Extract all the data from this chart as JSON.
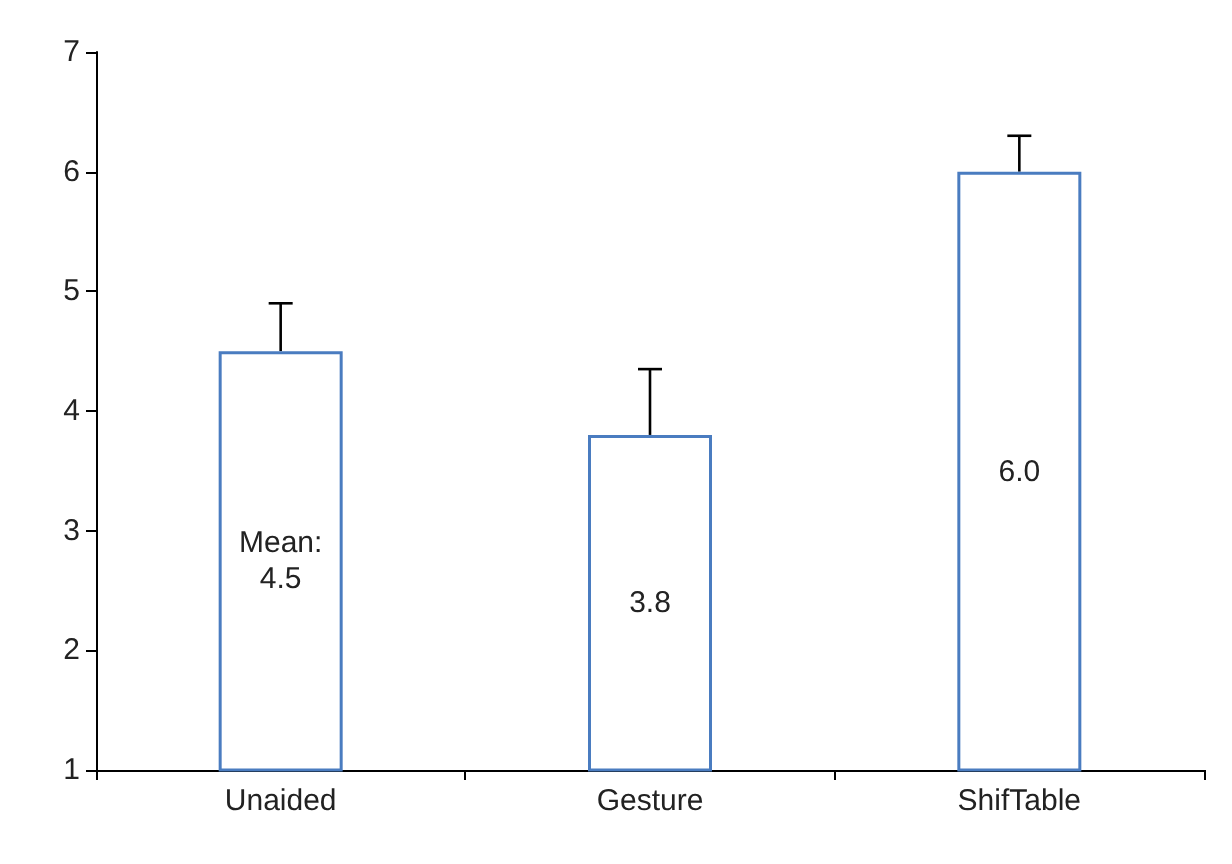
{
  "chart_data": {
    "type": "bar",
    "categories": [
      "Unaided",
      "Gesture",
      "ShifTable"
    ],
    "series": [
      {
        "color": "#4a7cc0",
        "values": [
          4.5,
          3.8,
          6.0
        ],
        "errors": [
          [
            4.5,
            4.9
          ],
          [
            3.8,
            4.35
          ],
          [
            6.0,
            6.3
          ]
        ],
        "value_labels": [
          "Mean:\n4.5",
          "3.8",
          "6.0"
        ]
      }
    ],
    "ylim": [
      1,
      7
    ],
    "yticks": [
      1,
      2,
      3,
      4,
      5,
      6,
      7
    ],
    "grid": false
  }
}
